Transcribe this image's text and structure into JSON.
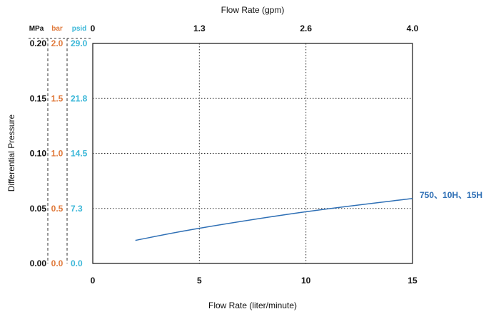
{
  "colors": {
    "mpa": "#111111",
    "bar": "#e07a3c",
    "psid": "#3bb7d8",
    "series": "#2e6fb5",
    "grid": "#333333"
  },
  "chart_data": {
    "type": "line",
    "title": "",
    "xlabel": "Flow Rate (liter/minute)",
    "x2label": "Flow Rate (gpm)",
    "ylabel": "Differential Pressure",
    "xlim": [
      0,
      15
    ],
    "ylim": [
      0,
      0.2
    ],
    "xticks": [
      "0",
      "5",
      "10",
      "15"
    ],
    "x2ticks": [
      "0",
      "1.3",
      "2.6",
      "4.0"
    ],
    "y_axes": [
      {
        "unit": "MPa",
        "ticks": [
          "0.00",
          "0.05",
          "0.10",
          "0.15",
          "0.20"
        ]
      },
      {
        "unit": "bar",
        "ticks": [
          "0.0",
          "0.5",
          "1.0",
          "1.5",
          "2.0"
        ]
      },
      {
        "unit": "psid",
        "ticks": [
          "0.0",
          "7.3",
          "14.5",
          "21.8",
          "29.0"
        ]
      }
    ],
    "grid": true,
    "series": [
      {
        "name": "750、10H、15H",
        "x": [
          2,
          5,
          10,
          15
        ],
        "y": [
          0.021,
          0.032,
          0.047,
          0.059
        ]
      }
    ]
  }
}
